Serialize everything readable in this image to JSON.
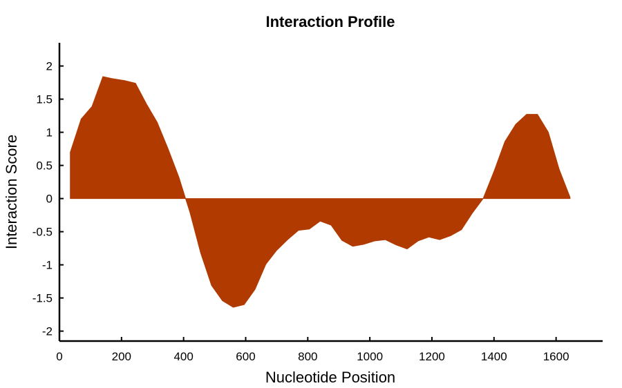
{
  "chart_data": {
    "type": "area",
    "title": "Interaction Profile",
    "xlabel": "Nucleotide Position",
    "ylabel": "Interaction Score",
    "xlim": [
      0,
      1750
    ],
    "ylim": [
      -2.15,
      2.35
    ],
    "xticks": [
      0,
      200,
      400,
      600,
      800,
      1000,
      1200,
      1400,
      1600
    ],
    "yticks": [
      2,
      1.5,
      1,
      0.5,
      0,
      -0.5,
      -1,
      -1.5,
      -2
    ],
    "ytick_labels": [
      "2",
      "1.5",
      "1",
      "0.5",
      "0",
      "-0.5",
      "-1",
      "-1.5",
      "-2"
    ],
    "grid": false,
    "color": "#b03a00",
    "series": [
      {
        "x": [
          35,
          70,
          105,
          140,
          170,
          210,
          245,
          280,
          315,
          350,
          385,
          405,
          420,
          455,
          490,
          525,
          560,
          595,
          630,
          665,
          700,
          735,
          770,
          805,
          840,
          875,
          910,
          945,
          980,
          1015,
          1050,
          1085,
          1120,
          1155,
          1190,
          1225,
          1260,
          1295,
          1330,
          1365,
          1400,
          1435,
          1470,
          1505,
          1540,
          1575,
          1610,
          1645
        ],
        "values": [
          0.7,
          1.2,
          1.39,
          1.84,
          1.81,
          1.78,
          1.74,
          1.43,
          1.15,
          0.75,
          0.32,
          0.02,
          -0.2,
          -0.82,
          -1.31,
          -1.54,
          -1.64,
          -1.6,
          -1.37,
          -0.99,
          -0.78,
          -0.62,
          -0.48,
          -0.46,
          -0.34,
          -0.4,
          -0.63,
          -0.72,
          -0.69,
          -0.64,
          -0.62,
          -0.7,
          -0.76,
          -0.64,
          -0.58,
          -0.62,
          -0.56,
          -0.47,
          -0.22,
          0.0,
          0.41,
          0.86,
          1.12,
          1.27,
          1.27,
          1.0,
          0.44,
          0.02
        ]
      }
    ]
  }
}
